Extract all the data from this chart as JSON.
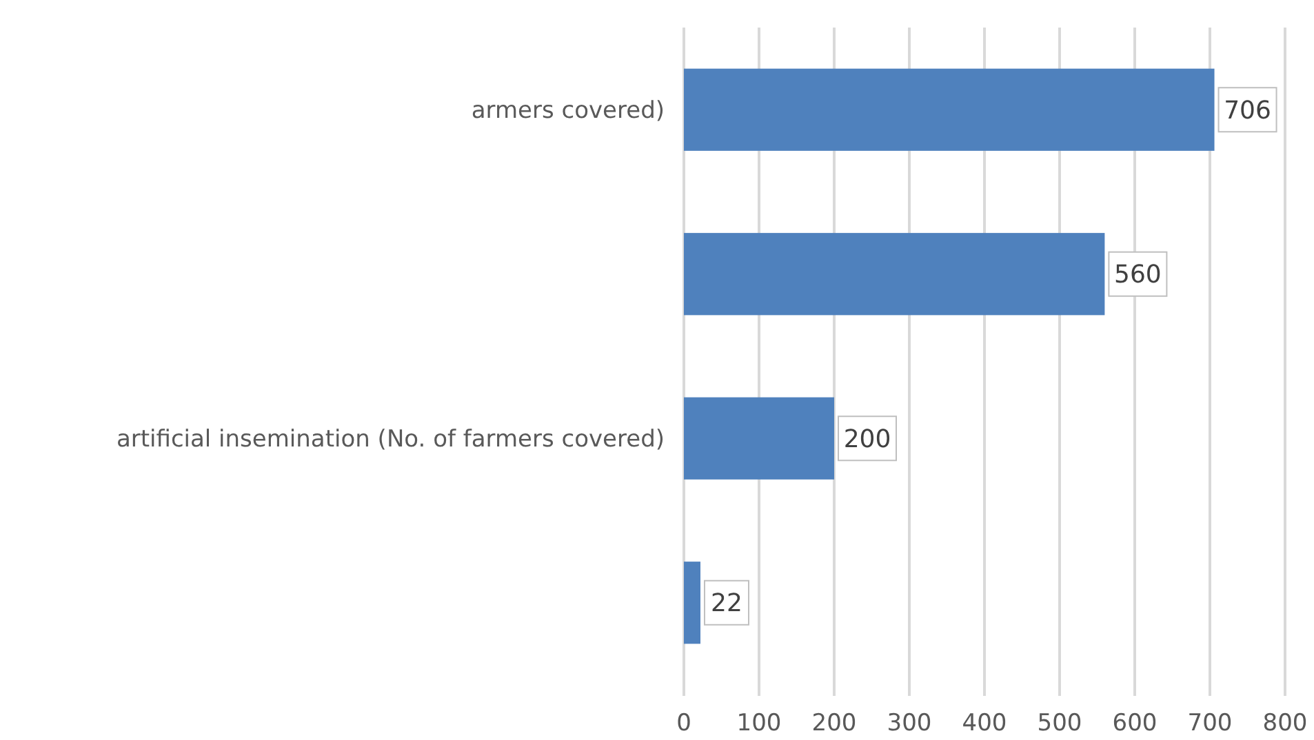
{
  "chart_data": {
    "type": "bar",
    "orientation": "horizontal",
    "categories": [
      "armers covered)",
      null,
      "artificial insemination (No. of farmers covered)",
      null
    ],
    "values": [
      706,
      560,
      200,
      22
    ],
    "color": "#4f81bd",
    "xlim": [
      0,
      800
    ],
    "xticks": [
      0,
      100,
      200,
      300,
      400,
      500,
      600,
      700,
      800
    ],
    "grid": "x",
    "data_labels": true
  }
}
